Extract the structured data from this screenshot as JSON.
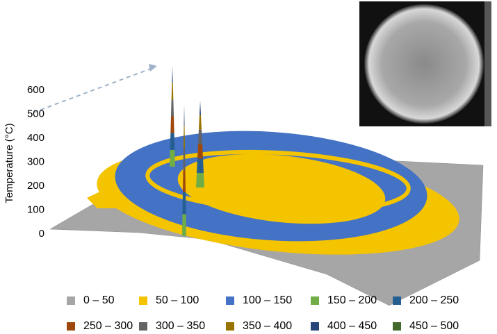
{
  "chart_data": {
    "type": "surface",
    "ylabel": "Temperature (°C)",
    "ylim": [
      0,
      600
    ],
    "yticks": [
      0,
      100,
      200,
      300,
      400,
      500,
      600
    ],
    "series": [
      {
        "name": "0 – 50",
        "color": "#a6a6a6"
      },
      {
        "name": "50 – 100",
        "color": "#f5c400"
      },
      {
        "name": "100 – 150",
        "color": "#4472c4"
      },
      {
        "name": "150 – 200",
        "color": "#70ad47"
      },
      {
        "name": "200 – 250",
        "color": "#255e91"
      },
      {
        "name": "250 – 300",
        "color": "#9e480e"
      },
      {
        "name": "300 – 350",
        "color": "#636363"
      },
      {
        "name": "350 – 400",
        "color": "#997300"
      },
      {
        "name": "400 – 450",
        "color": "#264478"
      },
      {
        "name": "450 – 500",
        "color": "#43682b"
      }
    ]
  }
}
